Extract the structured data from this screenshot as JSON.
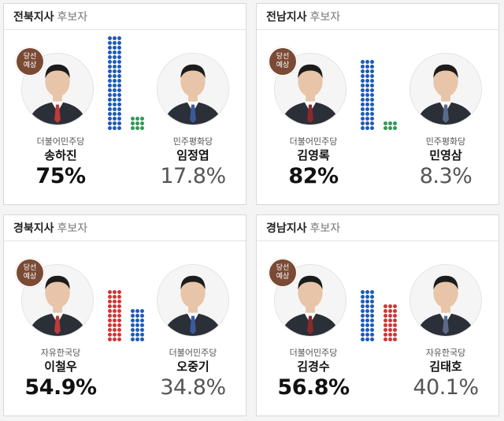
{
  "badge": {
    "line1": "당선",
    "line2": "예상"
  },
  "regions": [
    {
      "title": "전북지사",
      "subtitle": "후보자",
      "winner": {
        "party": "더불어민주당",
        "name": "송하진",
        "pct": "75%",
        "bar_color": "#1e5bb8",
        "dot_count": 60
      },
      "runnerup": {
        "party": "민주평화당",
        "name": "임정엽",
        "pct": "17.8%",
        "bar_color": "#2e9b55",
        "dot_count": 9
      }
    },
    {
      "title": "전남지사",
      "subtitle": "후보자",
      "winner": {
        "party": "더불어민주당",
        "name": "김영록",
        "pct": "82%",
        "bar_color": "#1e5bb8",
        "dot_count": 45
      },
      "runnerup": {
        "party": "민주평화당",
        "name": "민영삼",
        "pct": "8.3%",
        "bar_color": "#2e9b55",
        "dot_count": 6
      }
    },
    {
      "title": "경북지사",
      "subtitle": "후보자",
      "winner": {
        "party": "자유한국당",
        "name": "이철우",
        "pct": "54.9%",
        "bar_color": "#d33434",
        "dot_count": 33
      },
      "runnerup": {
        "party": "더불어민주당",
        "name": "오중기",
        "pct": "34.8%",
        "bar_color": "#1e5bb8",
        "dot_count": 21
      }
    },
    {
      "title": "경남지사",
      "subtitle": "후보자",
      "winner": {
        "party": "더불어민주당",
        "name": "김경수",
        "pct": "56.8%",
        "bar_color": "#1e5bb8",
        "dot_count": 33
      },
      "runnerup": {
        "party": "자유한국당",
        "name": "김태호",
        "pct": "40.1%",
        "bar_color": "#d33434",
        "dot_count": 24
      }
    }
  ]
}
